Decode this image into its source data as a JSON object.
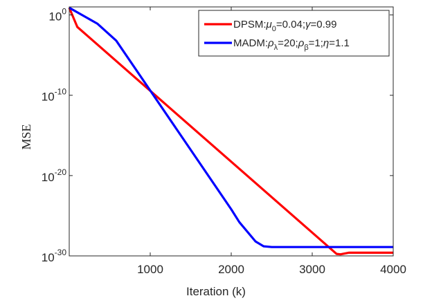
{
  "chart_data": {
    "type": "line",
    "title": "",
    "xlabel": "Iteration (k)",
    "ylabel": "MSE",
    "xlim": [
      0,
      4000
    ],
    "ylim_exponent": [
      -30,
      1
    ],
    "yscale": "log",
    "grid": false,
    "legend_placement": "top-right",
    "x_ticks": [
      1000,
      2000,
      3000,
      4000
    ],
    "y_ticks": [
      {
        "base": "10",
        "exp": "0",
        "value_exp": 0
      },
      {
        "base": "10",
        "exp": "-10",
        "value_exp": -10
      },
      {
        "base": "10",
        "exp": "-20",
        "value_exp": -20
      },
      {
        "base": "10",
        "exp": "-30",
        "value_exp": -30
      }
    ],
    "series": [
      {
        "name_parts": [
          {
            "t": "DPSM:",
            "style": "normal"
          },
          {
            "t": "μ",
            "style": "italic"
          },
          {
            "t": "0",
            "style": "sub"
          },
          {
            "t": "=0.04;",
            "style": "normal"
          },
          {
            "t": "γ",
            "style": "italic"
          },
          {
            "t": "=0.99",
            "style": "normal"
          }
        ],
        "color": "#ff0000",
        "x": [
          0,
          100,
          3300,
          3350,
          3450,
          4000
        ],
        "log10_y": [
          0.9,
          -1.5,
          -29.75,
          -29.8,
          -29.6,
          -29.6
        ]
      },
      {
        "name_parts": [
          {
            "t": "MADM:",
            "style": "normal"
          },
          {
            "t": "ρ",
            "style": "italic"
          },
          {
            "t": "λ",
            "style": "sub"
          },
          {
            "t": "=20;",
            "style": "normal"
          },
          {
            "t": "ρ",
            "style": "italic"
          },
          {
            "t": "β",
            "style": "sub"
          },
          {
            "t": "=1;",
            "style": "normal"
          },
          {
            "t": "η",
            "style": "italic"
          },
          {
            "t": "=1.1",
            "style": "normal"
          }
        ],
        "color": "#0000ff",
        "x": [
          0,
          350,
          580,
          2000,
          2100,
          2300,
          2400,
          2500,
          4000
        ],
        "log10_y": [
          0.9,
          -1.1,
          -3.2,
          -24.2,
          -25.8,
          -28.2,
          -28.8,
          -28.9,
          -28.9
        ]
      }
    ]
  }
}
